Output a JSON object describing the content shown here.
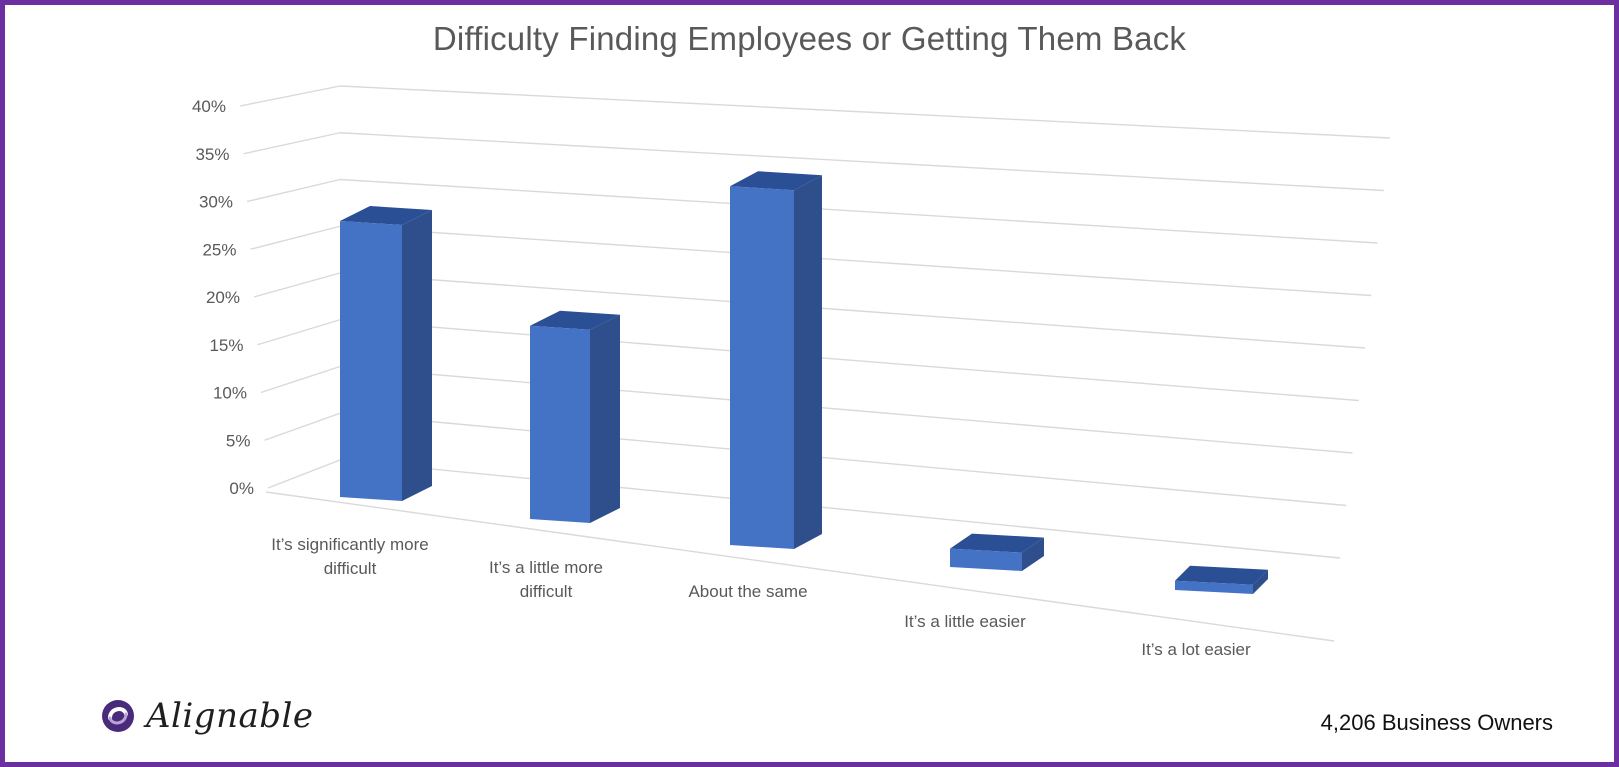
{
  "brand": {
    "name": "Alignable",
    "logo_icon": "alignable-swirl-icon",
    "accent": "#6b2fa0"
  },
  "footer": {
    "sample_size": "4,206 Business Owners"
  },
  "colors": {
    "bar_front": "#4472c4",
    "bar_side": "#2f4f8c",
    "bar_top": "#2b4f95",
    "grid": "#d9d9d9",
    "frame": "#6b2fa0"
  },
  "chart_data": {
    "type": "bar",
    "title": "Difficulty Finding Employees or Getting Them Back",
    "categories": [
      [
        "It’s significantly more",
        "difficult"
      ],
      [
        "It’s a little more",
        "difficult"
      ],
      [
        "About the same"
      ],
      [
        "It’s a little easier"
      ],
      [
        "It’s a lot easier"
      ]
    ],
    "series": [
      {
        "values": [
          30,
          21,
          39,
          2,
          1
        ]
      }
    ],
    "yticks": [
      "0%",
      "5%",
      "10%",
      "15%",
      "20%",
      "25%",
      "30%",
      "35%",
      "40%"
    ],
    "ylim": [
      0,
      40
    ],
    "grid": true,
    "style": "3d-column"
  }
}
